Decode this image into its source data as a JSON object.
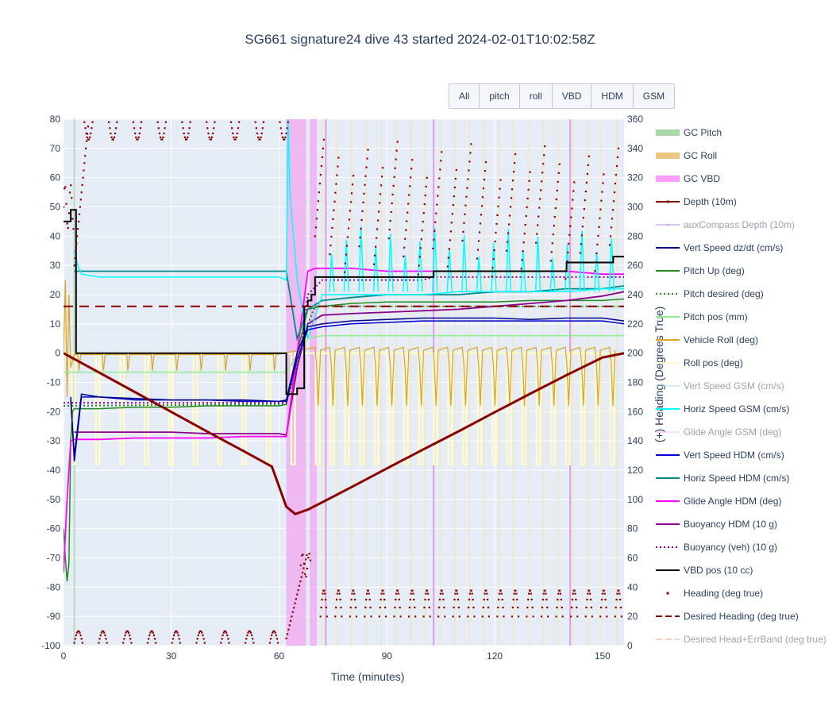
{
  "title": "SG661 signature24 dive 43 started 2024-02-01T10:02:58Z",
  "buttons": [
    "All",
    "pitch",
    "roll",
    "VBD",
    "HDM",
    "GSM"
  ],
  "chart_data": {
    "type": "line",
    "xlabel": "Time (minutes)",
    "ylabel": "",
    "y2label": "(+) Heading (Degrees True)",
    "xlim": [
      0,
      156
    ],
    "ylim": [
      -100,
      80
    ],
    "y2lim": [
      0,
      360
    ],
    "xticks": [
      0,
      30,
      60,
      90,
      120,
      150
    ],
    "yticks": [
      -100,
      -90,
      -80,
      -70,
      -60,
      -50,
      -40,
      -30,
      -20,
      -10,
      0,
      10,
      20,
      30,
      40,
      50,
      60,
      70,
      80
    ],
    "y2ticks": [
      0,
      20,
      40,
      60,
      80,
      100,
      120,
      140,
      160,
      180,
      200,
      220,
      240,
      260,
      280,
      300,
      320,
      340,
      360
    ],
    "grid": true,
    "legend_position": "right",
    "gc_bands": [
      {
        "type": "VBD",
        "start": 62,
        "end": 67.5
      },
      {
        "type": "VBD",
        "start": 68.5,
        "end": 70.5
      },
      {
        "type": "Pitch",
        "start": 2.8,
        "end": 3.2
      }
    ],
    "series": [
      {
        "name": "GC Pitch",
        "color": "#a8d8a8",
        "style": "band",
        "visible": true
      },
      {
        "name": "GC Roll",
        "color": "#e8c880",
        "style": "band",
        "visible": true
      },
      {
        "name": "GC VBD",
        "color": "#ff9cff",
        "style": "band",
        "visible": true
      },
      {
        "name": "Depth (10m)",
        "color": "#8b0000",
        "style": "line-marker",
        "visible": true,
        "x": [
          0,
          10,
          20,
          30,
          40,
          50,
          58,
          62,
          64.5,
          68,
          72,
          80,
          90,
          100,
          110,
          120,
          130,
          140,
          150,
          156
        ],
        "y": [
          0,
          -6.7,
          -13.4,
          -20.1,
          -26.8,
          -33.4,
          -38.8,
          -52.5,
          -55,
          -53.5,
          -51,
          -45.9,
          -39.4,
          -33,
          -26.7,
          -20.2,
          -13.8,
          -7.5,
          -1.5,
          0
        ]
      },
      {
        "name": "auxCompass Depth (10m)",
        "color": "#b98ee0",
        "style": "line-marker",
        "visible": false
      },
      {
        "name": "Vert Speed dz/dt (cm/s)",
        "color": "#00008b",
        "style": "line",
        "visible": true,
        "x": [
          2,
          3,
          5,
          10,
          20,
          30,
          40,
          50,
          60,
          62,
          65,
          68,
          72,
          80,
          90,
          100,
          110,
          120,
          130,
          140,
          150,
          156
        ],
        "y": [
          -16,
          -35,
          -14,
          -15,
          -15.5,
          -16,
          -16,
          -16,
          -16.5,
          -16,
          0,
          9,
          10,
          11,
          11.5,
          12,
          12,
          12,
          11.5,
          12,
          12,
          11
        ]
      },
      {
        "name": "Pitch Up (deg)",
        "color": "#228b22",
        "style": "line",
        "visible": true,
        "x": [
          0,
          0.5,
          1,
          1.5,
          2,
          2.5,
          3,
          5,
          10,
          20,
          30,
          40,
          50,
          60,
          62,
          65,
          68,
          72,
          80,
          90,
          100,
          110,
          120,
          130,
          140,
          150,
          156
        ],
        "y": [
          -60,
          -70,
          -78,
          -72,
          -30,
          -20,
          -19,
          -19,
          -19,
          -18.5,
          -18.5,
          -18,
          -18,
          -18,
          -17.5,
          0,
          15,
          16,
          17,
          17.5,
          17.5,
          17.5,
          17.5,
          18,
          18,
          18,
          18.5
        ]
      },
      {
        "name": "Pitch desired (deg)",
        "color": "#228b22",
        "style": "dotted",
        "visible": true,
        "x": [
          0,
          62,
          68,
          70,
          156
        ],
        "y": [
          -18,
          -17.5,
          10,
          16,
          16
        ]
      },
      {
        "name": "Pitch pos (mm)",
        "color": "#90ee90",
        "style": "line",
        "visible": true,
        "x": [
          0,
          62,
          68,
          72,
          156
        ],
        "y": [
          -6.5,
          -6.5,
          5,
          6,
          6
        ]
      },
      {
        "name": "Vehicle Roll (deg)",
        "color": "#daa520",
        "style": "line",
        "visible": true
      },
      {
        "name": "Roll pos (deg)",
        "color": "#fffacd",
        "style": "line",
        "visible": true
      },
      {
        "name": "Vert Speed GSM (cm/s)",
        "color": "#add8e6",
        "style": "line",
        "visible": false
      },
      {
        "name": "Horiz Speed GSM (cm/s)",
        "color": "#00ffff",
        "style": "line",
        "visible": true,
        "x": [
          3,
          4,
          5,
          10,
          20,
          30,
          40,
          50,
          60,
          62,
          62.5,
          63,
          65,
          68,
          72,
          80,
          90,
          100,
          110,
          120,
          130,
          140,
          150,
          156
        ],
        "y": [
          35,
          30,
          27,
          26,
          26,
          26,
          26,
          26,
          26,
          25,
          80,
          55,
          25,
          5,
          20,
          20,
          20,
          20,
          21,
          21,
          21,
          21,
          22,
          22
        ]
      },
      {
        "name": "Glide Angle GSM (deg)",
        "color": "#ffb6ff",
        "style": "line",
        "visible": false
      },
      {
        "name": "Vert Speed HDM (cm/s)",
        "color": "#0000cd",
        "style": "line",
        "visible": true,
        "x": [
          2,
          3,
          5,
          10,
          20,
          30,
          40,
          50,
          60,
          62,
          65,
          68,
          72,
          80,
          90,
          100,
          110,
          120,
          130,
          140,
          150,
          156
        ],
        "y": [
          -15,
          -37,
          -15,
          -15,
          -16,
          -16,
          -16,
          -16.5,
          -16.5,
          -16.5,
          -2,
          8,
          9,
          10,
          10.5,
          11,
          11,
          11,
          11,
          11,
          11,
          10
        ]
      },
      {
        "name": "Horiz Speed HDM (cm/s)",
        "color": "#008b8b",
        "style": "line",
        "visible": true,
        "x": [
          3,
          4,
          10,
          20,
          30,
          40,
          50,
          60,
          62,
          65,
          68,
          72,
          80,
          90,
          100,
          110,
          120,
          130,
          140,
          150,
          156
        ],
        "y": [
          28,
          28,
          28,
          28,
          28,
          28,
          28,
          28,
          28,
          5,
          15,
          18,
          19,
          20,
          20,
          20,
          21,
          21,
          22,
          22,
          23
        ]
      },
      {
        "name": "Glide Angle HDM (deg)",
        "color": "#ff00ff",
        "style": "line",
        "visible": true,
        "x": [
          0,
          0.5,
          1,
          2,
          3,
          5,
          10,
          20,
          30,
          40,
          50,
          60,
          62,
          65,
          68,
          70,
          72,
          80,
          90,
          100,
          110,
          120,
          130,
          140,
          150,
          156
        ],
        "y": [
          -75,
          -62,
          -50,
          -30,
          -29.5,
          -29.5,
          -29.5,
          -29,
          -29,
          -29,
          -28.5,
          -28.5,
          -28.5,
          0,
          28,
          29,
          29,
          29,
          28,
          28,
          28,
          28,
          28,
          28,
          27,
          27
        ]
      },
      {
        "name": "Buoyancy HDM (10 g)",
        "color": "#8b008b",
        "style": "line",
        "visible": true,
        "x": [
          3,
          5,
          10,
          20,
          30,
          40,
          50,
          60,
          62,
          65,
          68,
          72,
          80,
          90,
          100,
          110,
          120,
          130,
          140,
          150,
          156
        ],
        "y": [
          -27,
          -27,
          -27,
          -27,
          -27,
          -27.5,
          -27.5,
          -27.5,
          -28,
          -5,
          10,
          13,
          13.5,
          14,
          14.5,
          15,
          16,
          17,
          18,
          19.5,
          21
        ]
      },
      {
        "name": "Buoyancy (veh) (10 g)",
        "color": "#8b008b",
        "style": "dotted",
        "visible": true,
        "x": [
          0,
          62,
          66,
          68,
          72,
          80,
          100,
          103,
          130,
          156
        ],
        "y": [
          -17,
          -17,
          0,
          20,
          25,
          25,
          25,
          26,
          26,
          26
        ]
      },
      {
        "name": "VBD pos (10 cc)",
        "color": "#000000",
        "style": "step",
        "visible": true,
        "x": [
          0,
          2,
          3,
          3.5,
          62,
          63,
          65,
          67,
          68,
          69,
          70,
          72,
          100,
          103,
          110,
          140,
          150,
          153,
          156
        ],
        "y": [
          45,
          49,
          49,
          0,
          -14,
          -14,
          -12,
          16,
          18,
          20,
          26,
          26,
          26,
          28,
          28,
          31,
          31,
          33,
          33
        ]
      },
      {
        "name": "Heading (deg true)",
        "color": "#8b0000",
        "style": "markers",
        "visible": true,
        "axis": "y2"
      },
      {
        "name": "Desired Heading (deg true)",
        "color": "#8b0000",
        "style": "dashed",
        "visible": true,
        "axis": "y2",
        "x": [
          0,
          156
        ],
        "y": [
          232,
          232
        ]
      },
      {
        "name": "Desired Head+ErrBand (deg true)",
        "color": "#f4a582",
        "style": "dashed",
        "visible": false,
        "axis": "y2"
      }
    ]
  }
}
